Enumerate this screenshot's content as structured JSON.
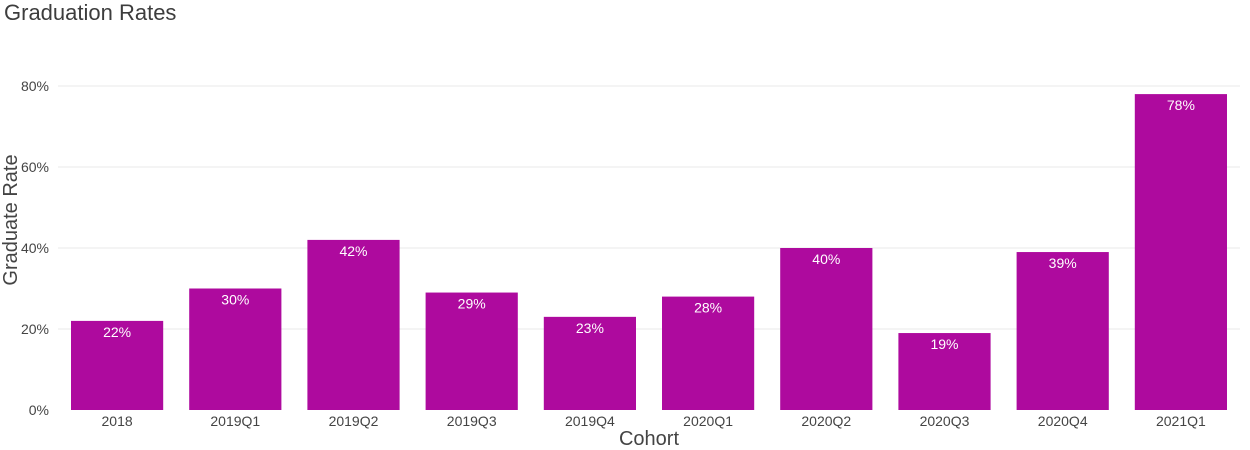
{
  "chart_data": {
    "type": "bar",
    "title": "Graduation Rates",
    "xlabel": "Cohort",
    "ylabel": "Graduate Rate",
    "categories": [
      "2018",
      "2019Q1",
      "2019Q2",
      "2019Q3",
      "2019Q4",
      "2020Q1",
      "2020Q2",
      "2020Q3",
      "2020Q4",
      "2021Q1"
    ],
    "values": [
      22,
      30,
      42,
      29,
      23,
      28,
      40,
      19,
      39,
      78
    ],
    "data_labels": [
      "22%",
      "30%",
      "42%",
      "29%",
      "23%",
      "28%",
      "40%",
      "19%",
      "39%",
      "78%"
    ],
    "ylim": [
      0,
      80
    ],
    "yticks": [
      0,
      20,
      40,
      60,
      80
    ],
    "ytick_labels": [
      "0%",
      "20%",
      "40%",
      "60%",
      "80%"
    ],
    "grid": true,
    "legend": false,
    "bar_color": "#ae0a9e"
  }
}
